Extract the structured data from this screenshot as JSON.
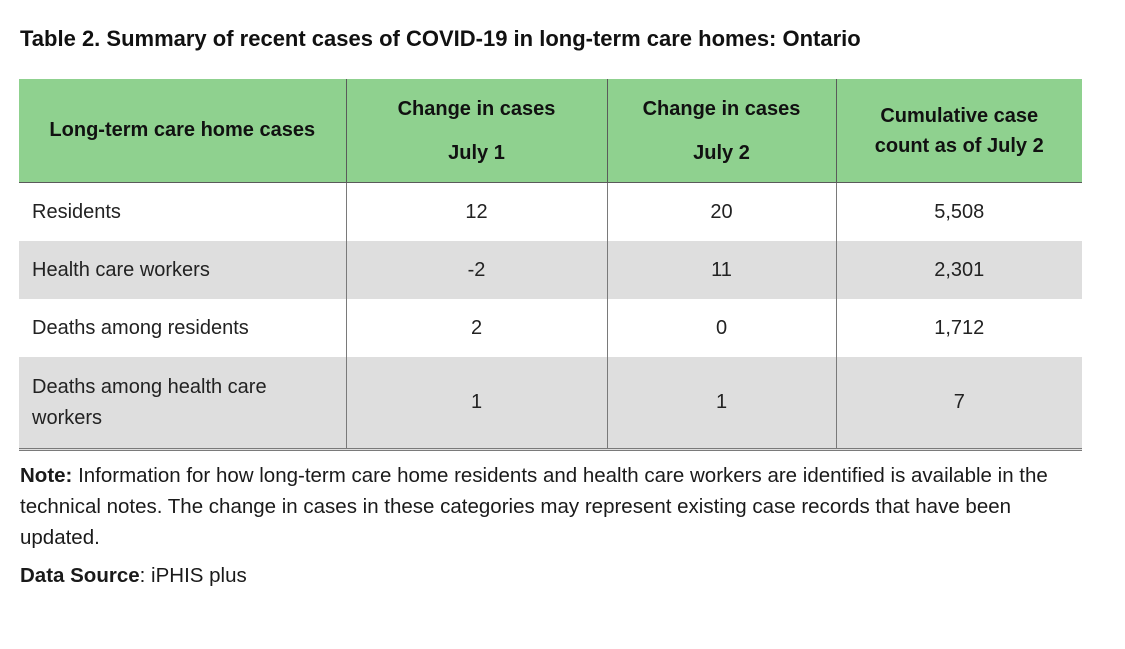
{
  "title": "Table 2. Summary of recent cases of COVID-19 in long-term care homes: Ontario",
  "table": {
    "headers": [
      {
        "line1": "Long-term care home cases",
        "line2": ""
      },
      {
        "line1": "Change in cases",
        "line2": "July 1"
      },
      {
        "line1": "Change in cases",
        "line2": "July 2"
      },
      {
        "line1": "Cumulative case",
        "line2": "count as of July 2"
      }
    ],
    "rows": [
      {
        "label": "Residents",
        "july1": "12",
        "july2": "20",
        "cumulative": "5,508"
      },
      {
        "label": "Health care workers",
        "july1": "-2",
        "july2": "11",
        "cumulative": "2,301"
      },
      {
        "label": "Deaths among residents",
        "july1": "2",
        "july2": "0",
        "cumulative": "1,712"
      },
      {
        "label": "Deaths among health care workers",
        "july1": "1",
        "july2": "1",
        "cumulative": "7"
      }
    ]
  },
  "note": {
    "label": "Note:",
    "text": " Information for how long-term care home residents and health care workers are identified is available in the technical notes. The change in cases in these categories may represent existing case records that have been updated."
  },
  "source": {
    "label": "Data Source",
    "text": ": iPHIS plus"
  },
  "colors": {
    "header_bg": "#8fd18f",
    "shaded_row_bg": "#dedede"
  }
}
